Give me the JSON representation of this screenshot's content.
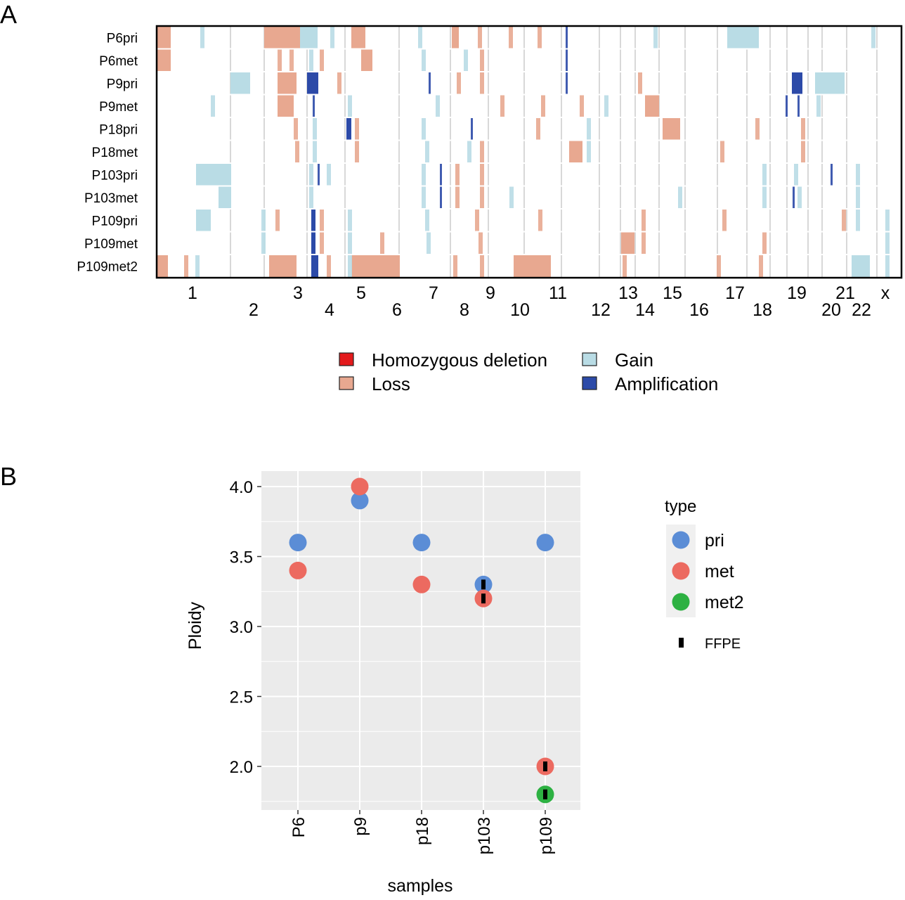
{
  "panel_a": {
    "letter": "A",
    "samples": [
      "P6pri",
      "P6met",
      "P9pri",
      "P9met",
      "P18pri",
      "P18met",
      "P103pri",
      "P103met",
      "P109pri",
      "P109met",
      "P109met2"
    ],
    "chromosomes": [
      "1",
      "2",
      "3",
      "4",
      "5",
      "6",
      "7",
      "8",
      "9",
      "10",
      "11",
      "12",
      "13",
      "14",
      "15",
      "16",
      "17",
      "18",
      "19",
      "20",
      "21",
      "22",
      "x"
    ],
    "legend": [
      {
        "label": "Homozygous deletion",
        "color": "#e31a1c"
      },
      {
        "label": "Loss",
        "color": "#e8a890"
      },
      {
        "label": "Gain",
        "color": "#b9dce5"
      },
      {
        "label": "Amplification",
        "color": "#2c4aa8"
      }
    ]
  },
  "panel_b": {
    "letter": "B",
    "legend_title": "type",
    "ffpe_label": "FFPE",
    "colors": {
      "pri": "#5b8dd6",
      "met": "#ec6a60",
      "met2": "#2db142"
    }
  },
  "chart_data": [
    {
      "type": "heatmap",
      "title": "",
      "rows": [
        "P6pri",
        "P6met",
        "P9pri",
        "P9met",
        "P18pri",
        "P18met",
        "P103pri",
        "P103met",
        "P109pri",
        "P109met",
        "P109met2"
      ],
      "x_categories": [
        "1",
        "2",
        "3",
        "4",
        "5",
        "6",
        "7",
        "8",
        "9",
        "10",
        "11",
        "12",
        "13",
        "14",
        "15",
        "16",
        "17",
        "18",
        "19",
        "20",
        "21",
        "22",
        "x"
      ],
      "value_levels": [
        "Homozygous deletion",
        "Loss",
        "Gain",
        "Amplification"
      ],
      "segments": [
        {
          "row": "P6pri",
          "chr": "1",
          "state": "Loss"
        },
        {
          "row": "P6pri",
          "chr": "3",
          "state": "Loss"
        },
        {
          "row": "P6pri",
          "chr": "3",
          "state": "Gain"
        },
        {
          "row": "P6pri",
          "chr": "5",
          "state": "Loss"
        },
        {
          "row": "P6pri",
          "chr": "8",
          "state": "Loss"
        },
        {
          "row": "P6pri",
          "chr": "17",
          "state": "Gain"
        },
        {
          "row": "P6met",
          "chr": "1",
          "state": "Loss"
        },
        {
          "row": "P6met",
          "chr": "5",
          "state": "Loss"
        },
        {
          "row": "P9pri",
          "chr": "2",
          "state": "Gain"
        },
        {
          "row": "P9pri",
          "chr": "3",
          "state": "Loss"
        },
        {
          "row": "P9pri",
          "chr": "4",
          "state": "Amplification"
        },
        {
          "row": "P9pri",
          "chr": "19",
          "state": "Amplification"
        },
        {
          "row": "P9pri",
          "chr": "20",
          "state": "Gain"
        },
        {
          "row": "P9met",
          "chr": "3",
          "state": "Loss"
        },
        {
          "row": "P9met",
          "chr": "14",
          "state": "Loss"
        },
        {
          "row": "P18pri",
          "chr": "5",
          "state": "Amplification"
        },
        {
          "row": "P18pri",
          "chr": "15",
          "state": "Loss"
        },
        {
          "row": "P18met",
          "chr": "12",
          "state": "Loss"
        },
        {
          "row": "P103pri",
          "chr": "1",
          "state": "Gain"
        },
        {
          "row": "P103met",
          "chr": "2",
          "state": "Gain"
        },
        {
          "row": "P109pri",
          "chr": "1",
          "state": "Gain"
        },
        {
          "row": "P109pri",
          "chr": "4",
          "state": "Amplification"
        },
        {
          "row": "P109met",
          "chr": "4",
          "state": "Amplification"
        },
        {
          "row": "P109met",
          "chr": "13",
          "state": "Loss"
        },
        {
          "row": "P109met2",
          "chr": "1",
          "state": "Loss"
        },
        {
          "row": "P109met2",
          "chr": "3",
          "state": "Loss"
        },
        {
          "row": "P109met2",
          "chr": "4",
          "state": "Amplification"
        },
        {
          "row": "P109met2",
          "chr": "5",
          "state": "Loss"
        },
        {
          "row": "P109met2",
          "chr": "10",
          "state": "Loss"
        },
        {
          "row": "P109met2",
          "chr": "21",
          "state": "Gain"
        }
      ]
    },
    {
      "type": "scatter",
      "title": "",
      "xlabel": "samples",
      "ylabel": "Ploidy",
      "categories": [
        "P6",
        "p9",
        "p18",
        "p103",
        "p109"
      ],
      "ylim": [
        1.8,
        4.1
      ],
      "yticks": [
        2.0,
        2.5,
        3.0,
        3.5,
        4.0
      ],
      "grid": true,
      "legend_position": "right",
      "series": [
        {
          "name": "pri",
          "points": [
            {
              "x": "P6",
              "y": 3.6
            },
            {
              "x": "p9",
              "y": 3.9
            },
            {
              "x": "p18",
              "y": 3.6
            },
            {
              "x": "p103",
              "y": 3.3,
              "ffpe": true
            },
            {
              "x": "p109",
              "y": 3.6
            }
          ]
        },
        {
          "name": "met",
          "points": [
            {
              "x": "P6",
              "y": 3.4
            },
            {
              "x": "p9",
              "y": 4.0
            },
            {
              "x": "p18",
              "y": 3.3
            },
            {
              "x": "p103",
              "y": 3.2,
              "ffpe": true
            },
            {
              "x": "p109",
              "y": 2.0,
              "ffpe": true
            }
          ]
        },
        {
          "name": "met2",
          "points": [
            {
              "x": "p109",
              "y": 1.8,
              "ffpe": true
            }
          ]
        }
      ]
    }
  ]
}
